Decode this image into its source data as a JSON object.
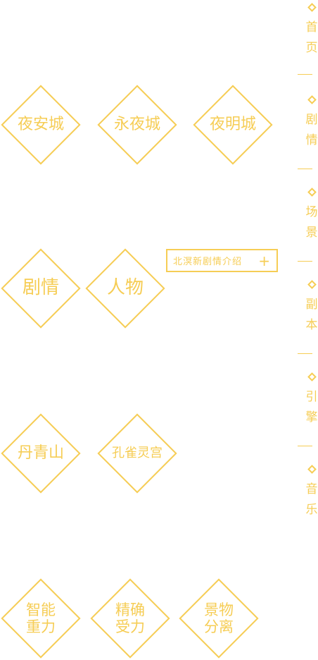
{
  "main": {
    "row1": [
      "夜安城",
      "永夜城",
      "夜明城"
    ],
    "row2": [
      "剧情",
      "人物"
    ],
    "intro_button": {
      "label": "北溟新剧情介绍",
      "icon": "plus-icon",
      "symbol": "+"
    },
    "row3": [
      "丹青山",
      "孔雀灵宫"
    ],
    "row4": [
      {
        "line1": "智能",
        "line2": "重力"
      },
      {
        "line1": "精确",
        "line2": "受力"
      },
      {
        "line1": "景物",
        "line2": "分离"
      }
    ]
  },
  "side_nav": [
    {
      "label": "首页",
      "icon": "diamond-icon"
    },
    {
      "label": "剧情",
      "icon": "diamond-icon"
    },
    {
      "label": "场景",
      "icon": "diamond-icon"
    },
    {
      "label": "副本",
      "icon": "diamond-icon"
    },
    {
      "label": "引擎",
      "icon": "diamond-icon"
    },
    {
      "label": "音乐",
      "icon": "diamond-icon"
    }
  ],
  "colors": {
    "accent": "#f6cd55",
    "background": "#ffffff"
  }
}
